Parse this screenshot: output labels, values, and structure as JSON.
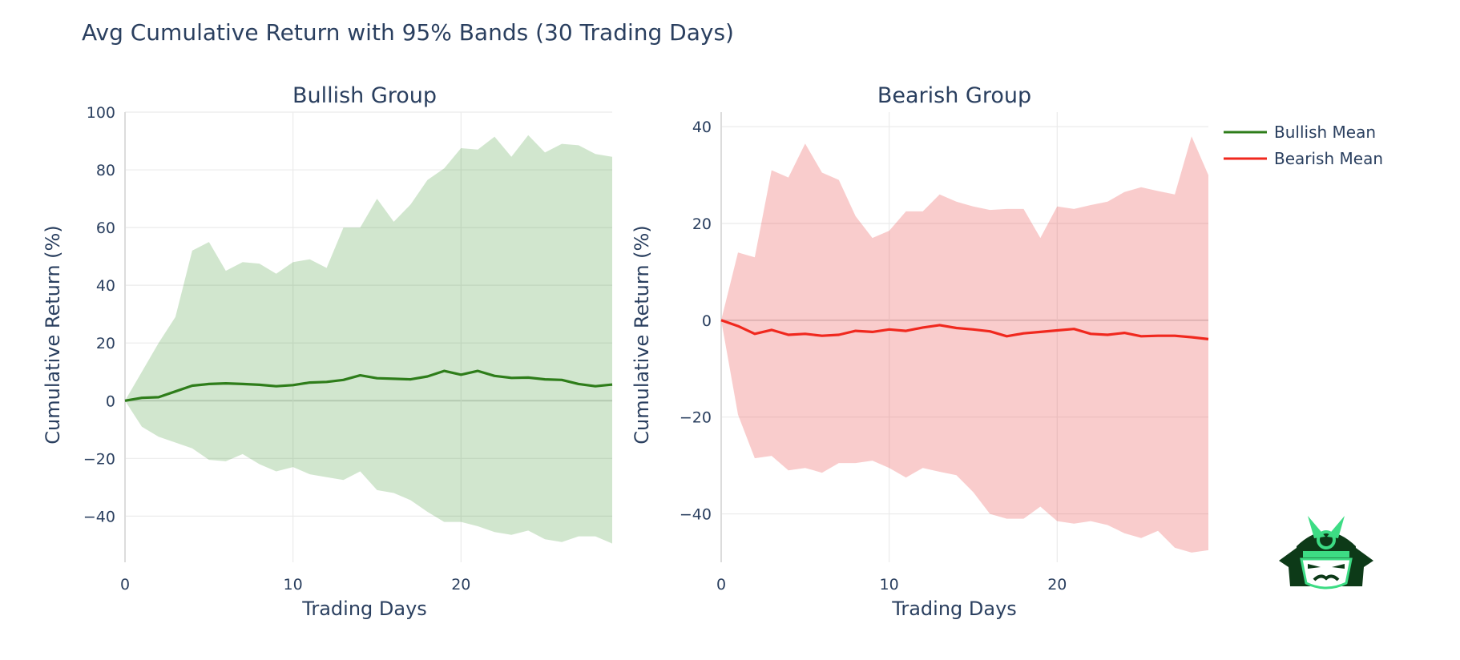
{
  "title": "Avg Cumulative Return with 95% Bands (30 Trading Days)",
  "legend": [
    {
      "name": "Bullish Mean",
      "color": "#2e7d1a"
    },
    {
      "name": "Bearish Mean",
      "color": "#f0281e"
    }
  ],
  "logo": {
    "icon": "samurai-mask-logo"
  },
  "chart_data": [
    {
      "type": "line",
      "title": "Bullish Group",
      "xlabel": "Trading Days",
      "ylabel": "Cumulative Return (%)",
      "xlim": [
        0,
        29
      ],
      "ylim": [
        -56,
        100
      ],
      "xticks": [
        0,
        10,
        20
      ],
      "yticks": [
        -40,
        -20,
        0,
        20,
        40,
        60,
        80,
        100
      ],
      "tick_labels_x": [
        "0",
        "10",
        "20"
      ],
      "tick_labels_y": [
        "−40",
        "−20",
        "0",
        "20",
        "40",
        "60",
        "80",
        "100"
      ],
      "line_color": "#2e7d1a",
      "band_color": "rgba(46,139,34,0.22)",
      "series": [
        {
          "name": "Bullish Mean",
          "x": [
            0,
            1,
            2,
            3,
            4,
            5,
            6,
            7,
            8,
            9,
            10,
            11,
            12,
            13,
            14,
            15,
            16,
            17,
            18,
            19,
            20,
            21,
            22,
            23,
            24,
            25,
            26,
            27,
            28,
            29
          ],
          "values": [
            0,
            1,
            1.2,
            3.2,
            5.2,
            5.8,
            6,
            5.8,
            5.5,
            5,
            5.4,
            6.3,
            6.5,
            7.2,
            8.8,
            7.8,
            7.6,
            7.4,
            8.4,
            10.3,
            9,
            10.3,
            8.6,
            7.9,
            8,
            7.4,
            7.2,
            5.8,
            5,
            5.6
          ]
        },
        {
          "name": "Upper 95%",
          "x": [
            0,
            1,
            2,
            3,
            4,
            5,
            6,
            7,
            8,
            9,
            10,
            11,
            12,
            13,
            14,
            15,
            16,
            17,
            18,
            19,
            20,
            21,
            22,
            23,
            24,
            25,
            26,
            27,
            28,
            29
          ],
          "values": [
            0,
            10,
            20,
            29,
            52,
            55,
            45,
            48,
            47.5,
            44,
            48,
            49,
            46,
            60,
            60,
            70,
            62,
            68,
            76.5,
            80.5,
            87.5,
            87,
            91.5,
            84.5,
            92,
            86,
            89,
            88.5,
            85.5,
            84.5
          ]
        },
        {
          "name": "Lower 95%",
          "x": [
            0,
            1,
            2,
            3,
            4,
            5,
            6,
            7,
            8,
            9,
            10,
            11,
            12,
            13,
            14,
            15,
            16,
            17,
            18,
            19,
            20,
            21,
            22,
            23,
            24,
            25,
            26,
            27,
            28,
            29
          ],
          "values": [
            0,
            -9,
            -12.5,
            -14.5,
            -16.5,
            -20.5,
            -21,
            -18.5,
            -22,
            -24.5,
            -23,
            -25.5,
            -26.5,
            -27.5,
            -24.5,
            -31,
            -32,
            -34.5,
            -38.5,
            -42,
            -42,
            -43.5,
            -45.5,
            -46.5,
            -45,
            -48,
            -49,
            -47,
            -47,
            -49.5
          ]
        }
      ]
    },
    {
      "type": "line",
      "title": "Bearish Group",
      "xlabel": "Trading Days",
      "ylabel": "Cumulative Return (%)",
      "xlim": [
        0,
        29
      ],
      "ylim": [
        -50,
        43
      ],
      "xticks": [
        0,
        10,
        20
      ],
      "yticks": [
        -40,
        -20,
        0,
        20,
        40
      ],
      "tick_labels_x": [
        "0",
        "10",
        "20"
      ],
      "tick_labels_y": [
        "−40",
        "−20",
        "0",
        "20",
        "40"
      ],
      "line_color": "#f0281e",
      "band_color": "rgba(232,72,72,0.28)",
      "series": [
        {
          "name": "Bearish Mean",
          "x": [
            0,
            1,
            2,
            3,
            4,
            5,
            6,
            7,
            8,
            9,
            10,
            11,
            12,
            13,
            14,
            15,
            16,
            17,
            18,
            19,
            20,
            21,
            22,
            23,
            24,
            25,
            26,
            27,
            28,
            29
          ],
          "values": [
            0,
            -1.2,
            -2.8,
            -2,
            -3,
            -2.8,
            -3.2,
            -3,
            -2.2,
            -2.4,
            -1.9,
            -2.2,
            -1.5,
            -1,
            -1.6,
            -1.9,
            -2.3,
            -3.3,
            -2.7,
            -2.4,
            -2.1,
            -1.8,
            -2.8,
            -3,
            -2.6,
            -3.3,
            -3.2,
            -3.2,
            -3.5,
            -3.9
          ]
        },
        {
          "name": "Upper 95%",
          "x": [
            0,
            1,
            2,
            3,
            4,
            5,
            6,
            7,
            8,
            9,
            10,
            11,
            12,
            13,
            14,
            15,
            16,
            17,
            18,
            19,
            20,
            21,
            22,
            23,
            24,
            25,
            26,
            27,
            28,
            29
          ],
          "values": [
            0,
            14,
            13,
            31,
            29.5,
            36.5,
            30.5,
            29,
            21.5,
            17,
            18.5,
            22.5,
            22.5,
            26,
            24.5,
            23.5,
            22.8,
            23,
            23,
            17,
            23.5,
            23,
            23.8,
            24.5,
            26.5,
            27.5,
            26.7,
            26,
            38,
            30
          ]
        },
        {
          "name": "Lower 95%",
          "x": [
            0,
            1,
            2,
            3,
            4,
            5,
            6,
            7,
            8,
            9,
            10,
            11,
            12,
            13,
            14,
            15,
            16,
            17,
            18,
            19,
            20,
            21,
            22,
            23,
            24,
            25,
            26,
            27,
            28,
            29
          ],
          "values": [
            0,
            -19.5,
            -28.5,
            -28,
            -31,
            -30.5,
            -31.5,
            -29.5,
            -29.5,
            -29,
            -30.5,
            -32.5,
            -30.5,
            -31.3,
            -32,
            -35.5,
            -40,
            -41,
            -41,
            -38.5,
            -41.5,
            -42,
            -41.5,
            -42.3,
            -44,
            -45,
            -43.5,
            -47,
            -48,
            -47.5
          ]
        }
      ]
    }
  ]
}
